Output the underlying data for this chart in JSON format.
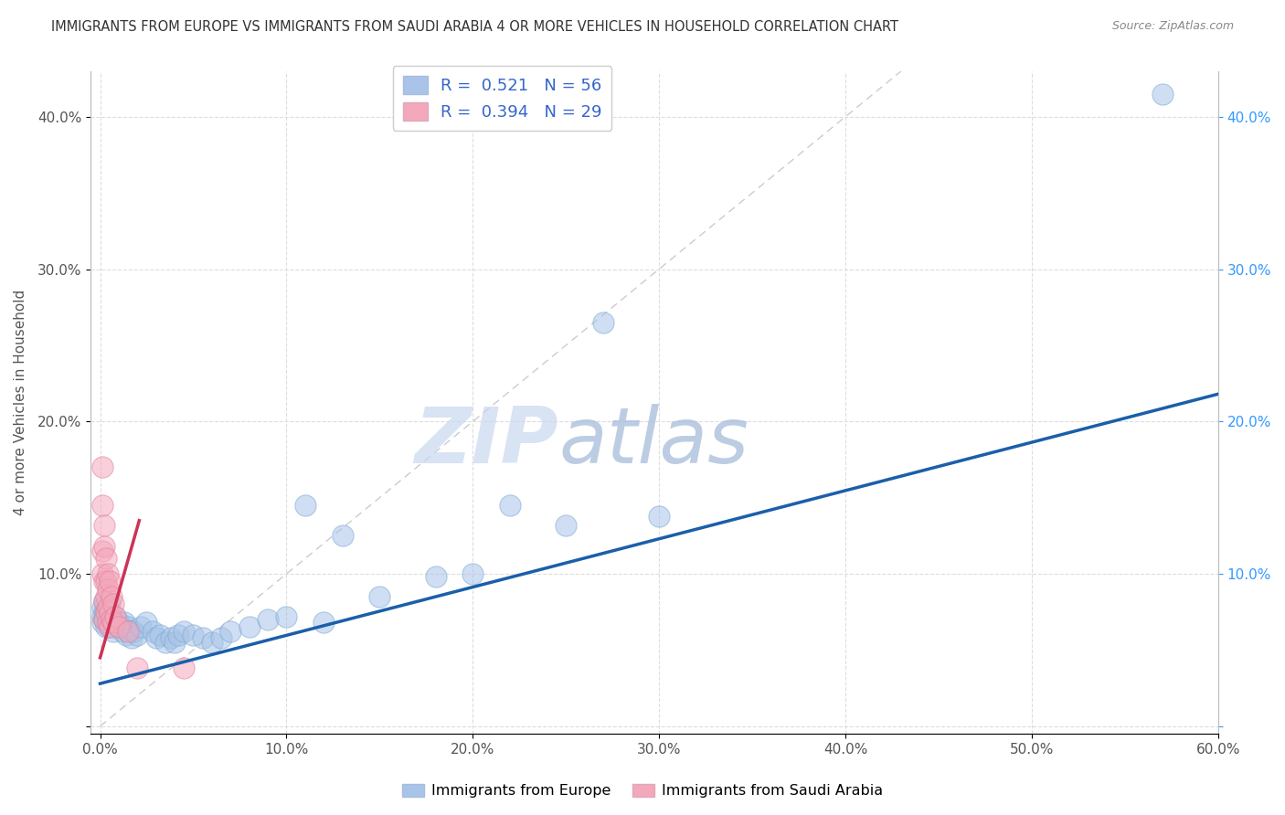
{
  "title": "IMMIGRANTS FROM EUROPE VS IMMIGRANTS FROM SAUDI ARABIA 4 OR MORE VEHICLES IN HOUSEHOLD CORRELATION CHART",
  "source": "Source: ZipAtlas.com",
  "ylabel": "4 or more Vehicles in Household",
  "xlabel": "",
  "watermark_zip": "ZIP",
  "watermark_atlas": "atlas",
  "blue_R": 0.521,
  "blue_N": 56,
  "pink_R": 0.394,
  "pink_N": 29,
  "blue_color": "#a8c4e8",
  "pink_color": "#f4a8bc",
  "blue_edge_color": "#7aaad4",
  "pink_edge_color": "#e0809a",
  "blue_line_color": "#1a5faa",
  "pink_line_color": "#cc3355",
  "blue_scatter": [
    [
      0.001,
      0.078
    ],
    [
      0.001,
      0.072
    ],
    [
      0.001,
      0.068
    ],
    [
      0.002,
      0.082
    ],
    [
      0.002,
      0.075
    ],
    [
      0.002,
      0.07
    ],
    [
      0.003,
      0.076
    ],
    [
      0.003,
      0.065
    ],
    [
      0.004,
      0.071
    ],
    [
      0.004,
      0.068
    ],
    [
      0.005,
      0.08
    ],
    [
      0.005,
      0.065
    ],
    [
      0.006,
      0.07
    ],
    [
      0.007,
      0.068
    ],
    [
      0.007,
      0.062
    ],
    [
      0.008,
      0.072
    ],
    [
      0.009,
      0.066
    ],
    [
      0.01,
      0.068
    ],
    [
      0.011,
      0.065
    ],
    [
      0.012,
      0.062
    ],
    [
      0.013,
      0.068
    ],
    [
      0.014,
      0.06
    ],
    [
      0.015,
      0.065
    ],
    [
      0.016,
      0.063
    ],
    [
      0.017,
      0.058
    ],
    [
      0.018,
      0.062
    ],
    [
      0.02,
      0.06
    ],
    [
      0.022,
      0.065
    ],
    [
      0.025,
      0.068
    ],
    [
      0.028,
      0.062
    ],
    [
      0.03,
      0.058
    ],
    [
      0.032,
      0.06
    ],
    [
      0.035,
      0.055
    ],
    [
      0.038,
      0.058
    ],
    [
      0.04,
      0.055
    ],
    [
      0.042,
      0.06
    ],
    [
      0.045,
      0.062
    ],
    [
      0.05,
      0.06
    ],
    [
      0.055,
      0.058
    ],
    [
      0.06,
      0.055
    ],
    [
      0.065,
      0.058
    ],
    [
      0.07,
      0.062
    ],
    [
      0.08,
      0.065
    ],
    [
      0.09,
      0.07
    ],
    [
      0.1,
      0.072
    ],
    [
      0.11,
      0.145
    ],
    [
      0.12,
      0.068
    ],
    [
      0.13,
      0.125
    ],
    [
      0.15,
      0.085
    ],
    [
      0.18,
      0.098
    ],
    [
      0.2,
      0.1
    ],
    [
      0.22,
      0.145
    ],
    [
      0.25,
      0.132
    ],
    [
      0.27,
      0.265
    ],
    [
      0.3,
      0.138
    ],
    [
      0.57,
      0.415
    ]
  ],
  "pink_scatter": [
    [
      0.001,
      0.17
    ],
    [
      0.001,
      0.145
    ],
    [
      0.001,
      0.115
    ],
    [
      0.001,
      0.1
    ],
    [
      0.002,
      0.132
    ],
    [
      0.002,
      0.118
    ],
    [
      0.002,
      0.095
    ],
    [
      0.002,
      0.082
    ],
    [
      0.002,
      0.07
    ],
    [
      0.003,
      0.11
    ],
    [
      0.003,
      0.095
    ],
    [
      0.003,
      0.085
    ],
    [
      0.003,
      0.075
    ],
    [
      0.004,
      0.1
    ],
    [
      0.004,
      0.09
    ],
    [
      0.004,
      0.078
    ],
    [
      0.004,
      0.068
    ],
    [
      0.005,
      0.095
    ],
    [
      0.005,
      0.075
    ],
    [
      0.005,
      0.065
    ],
    [
      0.006,
      0.085
    ],
    [
      0.006,
      0.07
    ],
    [
      0.007,
      0.08
    ],
    [
      0.007,
      0.068
    ],
    [
      0.008,
      0.072
    ],
    [
      0.01,
      0.065
    ],
    [
      0.015,
      0.062
    ],
    [
      0.02,
      0.038
    ],
    [
      0.045,
      0.038
    ]
  ],
  "xlim": [
    -0.005,
    0.6
  ],
  "ylim": [
    -0.005,
    0.43
  ],
  "xticks": [
    0.0,
    0.1,
    0.2,
    0.3,
    0.4,
    0.5,
    0.6
  ],
  "yticks": [
    0.0,
    0.1,
    0.2,
    0.3,
    0.4
  ],
  "xtick_labels": [
    "0.0%",
    "10.0%",
    "20.0%",
    "30.0%",
    "40.0%",
    "50.0%",
    "60.0%"
  ],
  "ytick_labels_left": [
    "",
    "10.0%",
    "20.0%",
    "30.0%",
    "40.0%"
  ],
  "ytick_labels_right": [
    "",
    "10.0%",
    "20.0%",
    "30.0%",
    "40.0%"
  ],
  "grid_color": "#dddddd",
  "diag_color": "#cccccc",
  "background_color": "#ffffff",
  "legend_label_blue": "Immigrants from Europe",
  "legend_label_pink": "Immigrants from Saudi Arabia"
}
